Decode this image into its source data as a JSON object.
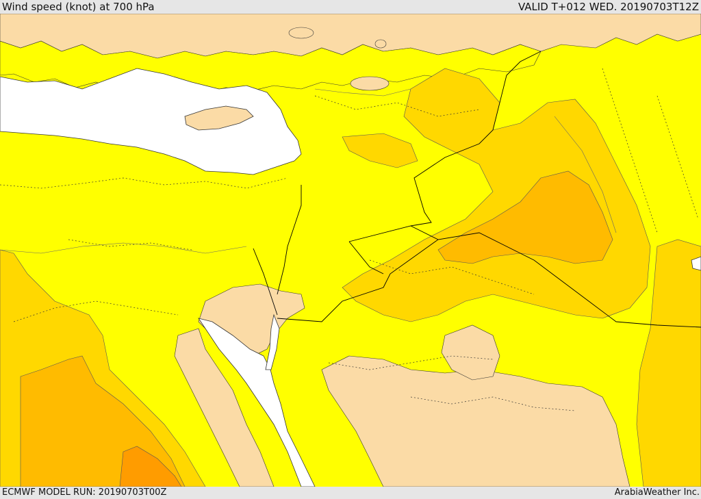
{
  "header": {
    "title": "Wind speed (knot) at 700 hPa",
    "valid": "VALID T+012 WED. 20190703T12Z"
  },
  "footer": {
    "model_run": "ECMWF MODEL RUN: 20190703T00Z",
    "credit": "ArabiaWeather Inc."
  },
  "colors": {
    "band_low": "#fbdba6",
    "band_mid": "#ffff00",
    "band_high": "#ffd800",
    "band_higher": "#ffbb00",
    "band_highest": "#ff9c00",
    "water": "#ffffff",
    "border": "#000000",
    "frame": "#e6e6e6"
  }
}
